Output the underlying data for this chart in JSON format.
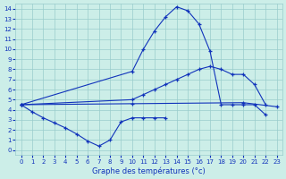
{
  "bg_color": "#cceee8",
  "grid_color": "#99cccc",
  "line_color": "#1133bb",
  "xlabel": "Graphe des températures (°c)",
  "x_ticks": [
    0,
    1,
    2,
    3,
    4,
    5,
    6,
    7,
    8,
    9,
    10,
    11,
    12,
    13,
    14,
    15,
    16,
    17,
    18,
    19,
    20,
    21,
    22,
    23
  ],
  "y_ticks": [
    0,
    1,
    2,
    3,
    4,
    5,
    6,
    7,
    8,
    9,
    10,
    11,
    12,
    13,
    14
  ],
  "xlim": [
    -0.5,
    23.5
  ],
  "ylim": [
    -0.5,
    14.5
  ],
  "line1_x": [
    0,
    1,
    2,
    3,
    4,
    5,
    6,
    7,
    8,
    9,
    10,
    11,
    12,
    13
  ],
  "line1_y": [
    4.5,
    3.8,
    3.2,
    2.7,
    2.2,
    1.6,
    0.9,
    0.4,
    1.0,
    2.8,
    3.2,
    3.2,
    3.2,
    3.2
  ],
  "line2_x": [
    0,
    10,
    11,
    12,
    13,
    14,
    15,
    16,
    17,
    18,
    19,
    20,
    21,
    22
  ],
  "line2_y": [
    4.5,
    7.8,
    10.0,
    11.8,
    13.2,
    14.2,
    13.8,
    12.5,
    9.8,
    4.5,
    4.5,
    4.5,
    4.5,
    3.5
  ],
  "line3_x": [
    0,
    10,
    11,
    12,
    13,
    14,
    15,
    16,
    17,
    18,
    19,
    20,
    21,
    22
  ],
  "line3_y": [
    4.5,
    5.0,
    5.5,
    6.0,
    6.5,
    7.0,
    7.5,
    8.0,
    8.3,
    8.0,
    7.5,
    7.5,
    6.5,
    4.5
  ],
  "line4_x": [
    0,
    10,
    20,
    23
  ],
  "line4_y": [
    4.5,
    4.6,
    4.7,
    4.3
  ]
}
